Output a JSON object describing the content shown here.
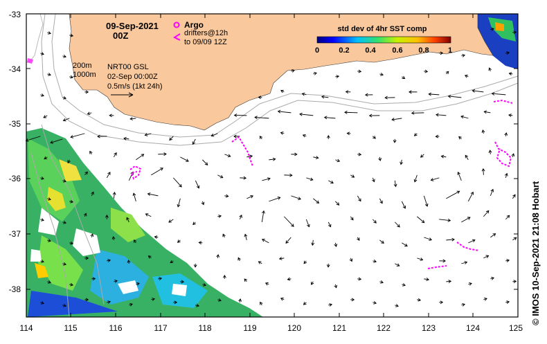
{
  "map": {
    "date_line1": "09-Sep-2021",
    "date_line2": "00Z",
    "legend_argo": "Argo",
    "legend_drifters_line1": "drifters@12h",
    "legend_drifters_line2": "to 09/09 12Z",
    "isobath_200": "200m",
    "isobath_1000": "1000m",
    "product_line1": "NRT00 GSL",
    "product_line2": "02-Sep 00:00Z",
    "scale_label": "0.5m/s (1kt 24h)",
    "colorbar_title": "std dev of 4hr SST comp",
    "colorbar_ticks": [
      "0",
      "0.2",
      "0.4",
      "0.6",
      "0.8",
      "1"
    ],
    "credit": "© IMOS 10-Sep-2021 21:08 Hobart"
  },
  "axes": {
    "lon_labels": [
      "114",
      "115",
      "116",
      "117",
      "118",
      "119",
      "120",
      "121",
      "122",
      "123",
      "124",
      "125"
    ],
    "lat_labels": [
      "-33",
      "-34",
      "-35",
      "-36",
      "-37",
      "-38"
    ]
  },
  "colors": {
    "land": "#f9c89c",
    "drifter": "#ff00ff",
    "isobath": "#aaaaaa",
    "arrow": "#000000"
  }
}
